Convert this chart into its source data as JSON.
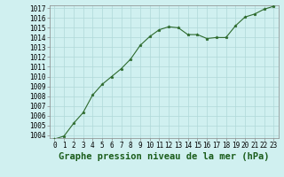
{
  "x": [
    0,
    1,
    2,
    3,
    4,
    5,
    6,
    7,
    8,
    9,
    10,
    11,
    12,
    13,
    14,
    15,
    16,
    17,
    18,
    19,
    20,
    21,
    22,
    23
  ],
  "y": [
    1003.6,
    1003.9,
    1005.2,
    1006.3,
    1008.1,
    1009.2,
    1010.0,
    1010.8,
    1011.8,
    1013.2,
    1014.1,
    1014.8,
    1015.1,
    1015.0,
    1014.3,
    1014.3,
    1013.9,
    1014.0,
    1014.0,
    1015.2,
    1016.1,
    1016.4,
    1016.9,
    1017.2
  ],
  "ylim": [
    1004,
    1017
  ],
  "xlim": [
    -0.5,
    23.5
  ],
  "yticks": [
    1004,
    1005,
    1006,
    1007,
    1008,
    1009,
    1010,
    1011,
    1012,
    1013,
    1014,
    1015,
    1016,
    1017
  ],
  "xticks": [
    0,
    1,
    2,
    3,
    4,
    5,
    6,
    7,
    8,
    9,
    10,
    11,
    12,
    13,
    14,
    15,
    16,
    17,
    18,
    19,
    20,
    21,
    22,
    23
  ],
  "line_color": "#2d6a2d",
  "marker_color": "#2d6a2d",
  "bg_color": "#d0f0f0",
  "grid_color": "#b0d8d8",
  "xlabel": "Graphe pression niveau de la mer (hPa)",
  "xlabel_color": "#1a5c1a",
  "tick_fontsize": 5.5,
  "label_fontsize": 7.5,
  "marker_size": 2.5,
  "linewidth": 0.8
}
